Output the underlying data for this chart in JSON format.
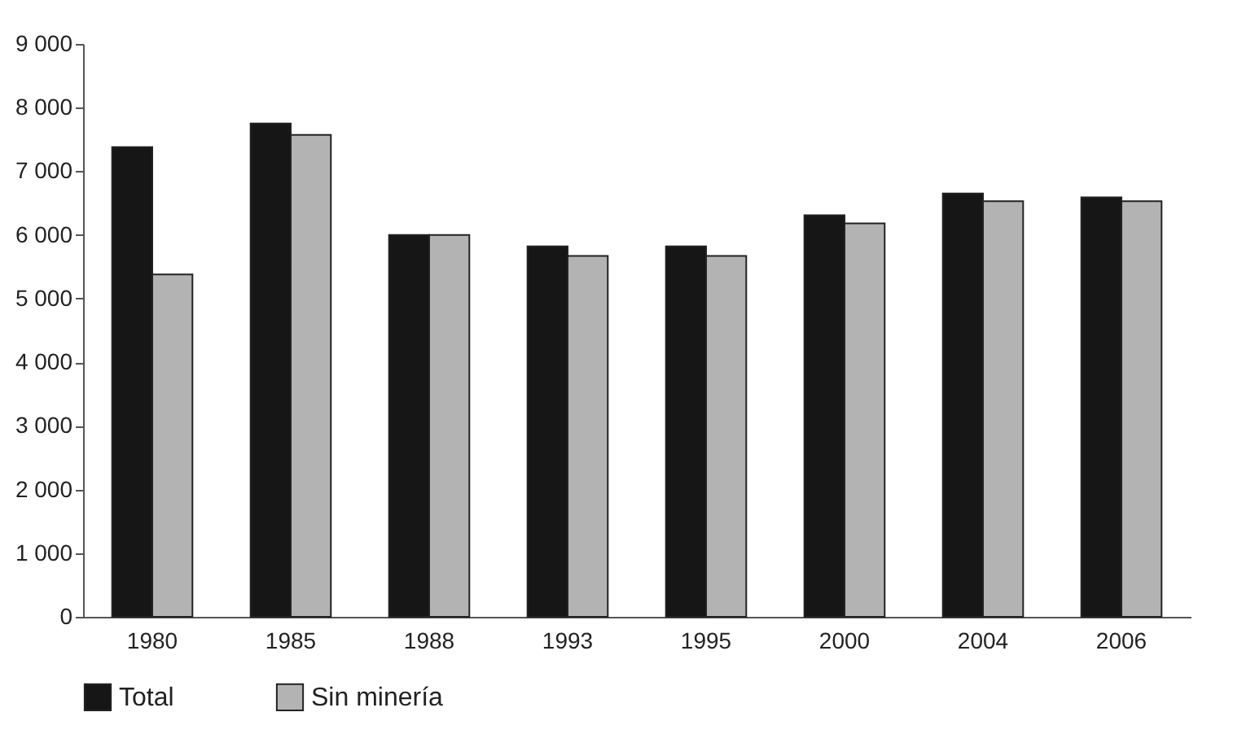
{
  "chart_data": {
    "type": "bar",
    "categories": [
      "1980",
      "1985",
      "1988",
      "1993",
      "1995",
      "2000",
      "2004",
      "2006"
    ],
    "series": [
      {
        "name": "Total",
        "color": "#161616",
        "values": [
          7380,
          7750,
          6000,
          5820,
          5820,
          6310,
          6650,
          6590
        ]
      },
      {
        "name": "Sin minería",
        "color": "#b3b3b3",
        "values": [
          5380,
          7570,
          6000,
          5670,
          5670,
          6180,
          6530,
          6530
        ]
      }
    ],
    "ylim": [
      0,
      9000
    ],
    "yticks": [
      {
        "value": 0,
        "label": "0"
      },
      {
        "value": 1000,
        "label": "1 000"
      },
      {
        "value": 2000,
        "label": "2 000"
      },
      {
        "value": 3000,
        "label": "3 000"
      },
      {
        "value": 4000,
        "label": "4 000"
      },
      {
        "value": 5000,
        "label": "5 000"
      },
      {
        "value": 6000,
        "label": "6 000"
      },
      {
        "value": 7000,
        "label": "7 000"
      },
      {
        "value": 8000,
        "label": "8 000"
      },
      {
        "value": 9000,
        "label": "9 000"
      }
    ],
    "grid": false,
    "legend": "bottom"
  }
}
